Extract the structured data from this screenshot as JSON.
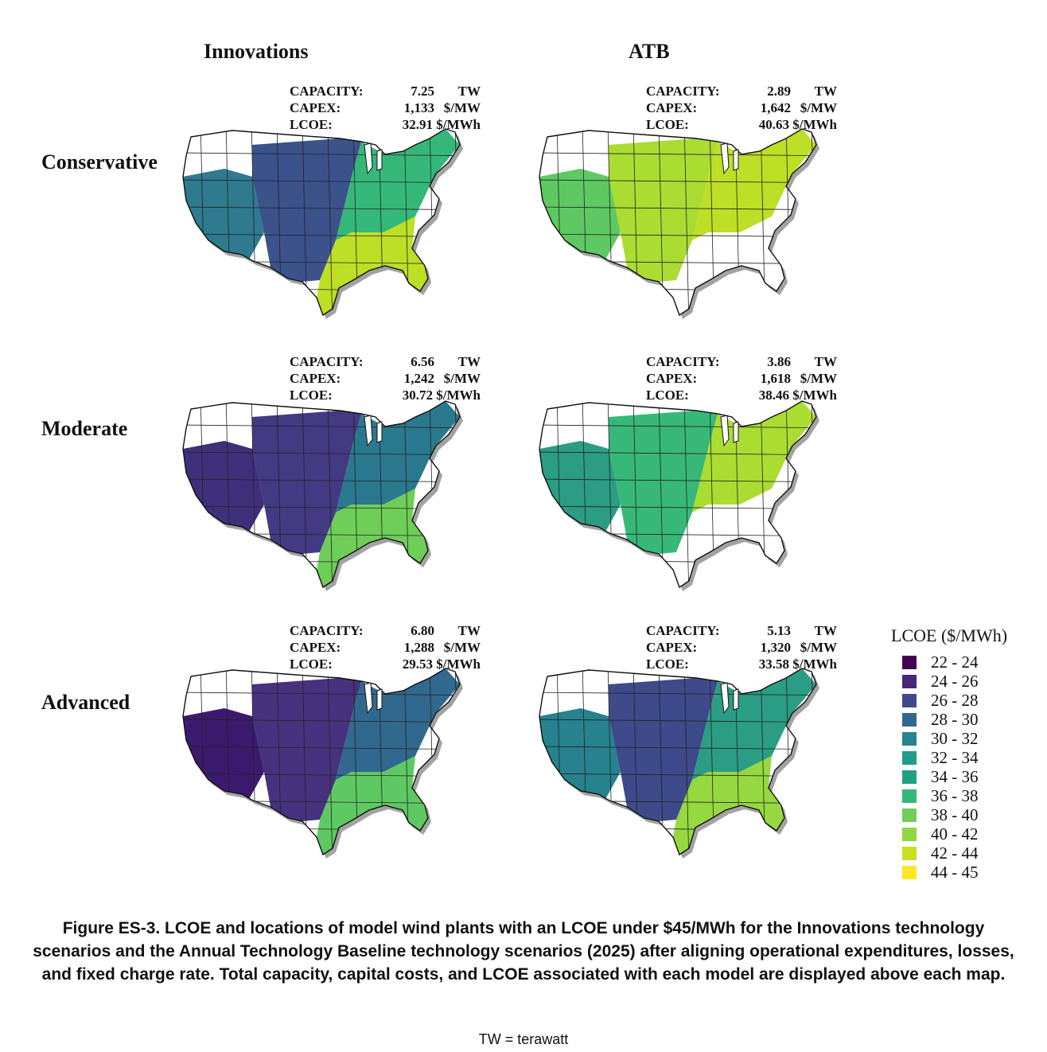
{
  "columns": [
    "Innovations",
    "ATB"
  ],
  "rows": [
    "Conservative",
    "Moderate",
    "Advanced"
  ],
  "stat_labels": {
    "capacity": "CAPACITY:",
    "capex": "CAPEX:",
    "lcoe": "LCOE:"
  },
  "units": {
    "capacity": "TW",
    "capex": "$/MW",
    "lcoe": "$/MWh"
  },
  "panels": [
    {
      "id": "innov-conservative",
      "column": "Innovations",
      "row": "Conservative",
      "capacity": "7.25",
      "capex": "1,133",
      "lcoe": "32.91",
      "fill_colors": [
        "#2f7a8f",
        "#3b528b",
        "#35b779",
        "#bddf26"
      ]
    },
    {
      "id": "atb-conservative",
      "column": "ATB",
      "row": "Conservative",
      "capacity": "2.89",
      "capex": "1,642",
      "lcoe": "40.63",
      "fill_colors": [
        "#5ec962",
        "#aadc32",
        "#bddf26",
        "#ffffff"
      ]
    },
    {
      "id": "innov-moderate",
      "column": "Innovations",
      "row": "Moderate",
      "capacity": "6.56",
      "capex": "1,242",
      "lcoe": "30.72",
      "fill_colors": [
        "#3e2f7b",
        "#443983",
        "#2a788e",
        "#6ece58"
      ]
    },
    {
      "id": "atb-moderate",
      "column": "ATB",
      "row": "Moderate",
      "capacity": "3.86",
      "capex": "1,618",
      "lcoe": "38.46",
      "fill_colors": [
        "#2a9d84",
        "#37b878",
        "#aadc32",
        "#ffffff"
      ]
    },
    {
      "id": "innov-advanced",
      "column": "Innovations",
      "row": "Advanced",
      "capacity": "6.80",
      "capex": "1,288",
      "lcoe": "29.53",
      "fill_colors": [
        "#3b1a6e",
        "#46327e",
        "#31688e",
        "#5ec962"
      ]
    },
    {
      "id": "atb-advanced",
      "column": "ATB",
      "row": "Advanced",
      "capacity": "5.13",
      "capex": "1,320",
      "lcoe": "33.58",
      "fill_colors": [
        "#26828e",
        "#3e4a89",
        "#2a9d84",
        "#95d840"
      ]
    }
  ],
  "legend": {
    "title": "LCOE ($/MWh)",
    "items": [
      {
        "label": "22 - 24",
        "color": "#440154"
      },
      {
        "label": "24 - 26",
        "color": "#482777"
      },
      {
        "label": "26 - 28",
        "color": "#3f4a8a"
      },
      {
        "label": "28 - 30",
        "color": "#31678e"
      },
      {
        "label": "30 - 32",
        "color": "#26838f"
      },
      {
        "label": "32 - 34",
        "color": "#1f9d8a"
      },
      {
        "label": "34 - 36",
        "color": "#1fa187"
      },
      {
        "label": "36 - 38",
        "color": "#35b779"
      },
      {
        "label": "38 - 40",
        "color": "#6ece58"
      },
      {
        "label": "40 - 42",
        "color": "#8fd744"
      },
      {
        "label": "42 - 44",
        "color": "#c8e020"
      },
      {
        "label": "44 - 45",
        "color": "#fde725"
      }
    ]
  },
  "caption": "Figure ES-3. LCOE and locations of model wind plants with an LCOE under $45/MWh for the Innovations technology scenarios and the Annual Technology Baseline technology scenarios (2025) after aligning operational expenditures, losses, and fixed charge rate. Total capacity, capital costs, and LCOE associated with each model are displayed above each map.",
  "note": "TW = terawatt"
}
